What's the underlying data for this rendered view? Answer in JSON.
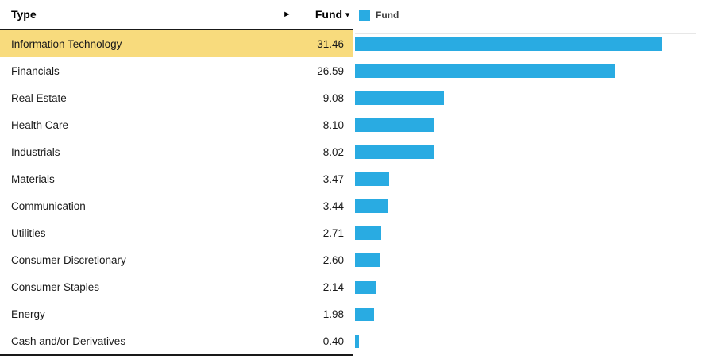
{
  "table": {
    "header": {
      "type_label": "Type",
      "expand_icon": "►",
      "fund_label": "Fund",
      "sort_desc_icon": "▼"
    },
    "rows": [
      {
        "type": "Information Technology",
        "fund": "31.46",
        "highlighted": true
      },
      {
        "type": "Financials",
        "fund": "26.59",
        "highlighted": false
      },
      {
        "type": "Real Estate",
        "fund": "9.08",
        "highlighted": false
      },
      {
        "type": "Health Care",
        "fund": "8.10",
        "highlighted": false
      },
      {
        "type": "Industrials",
        "fund": "8.02",
        "highlighted": false
      },
      {
        "type": "Materials",
        "fund": "3.47",
        "highlighted": false
      },
      {
        "type": "Communication",
        "fund": "3.44",
        "highlighted": false
      },
      {
        "type": "Utilities",
        "fund": "2.71",
        "highlighted": false
      },
      {
        "type": "Consumer Discretionary",
        "fund": "2.60",
        "highlighted": false
      },
      {
        "type": "Consumer Staples",
        "fund": "2.14",
        "highlighted": false
      },
      {
        "type": "Energy",
        "fund": "1.98",
        "highlighted": false
      },
      {
        "type": "Cash and/or Derivatives",
        "fund": "0.40",
        "highlighted": false
      }
    ]
  },
  "chart_data": {
    "type": "bar",
    "orientation": "horizontal",
    "title": "",
    "legend": [
      "Fund"
    ],
    "legend_label": "Fund",
    "legend_position": "top",
    "categories": [
      "Information Technology",
      "Financials",
      "Real Estate",
      "Health Care",
      "Industrials",
      "Materials",
      "Communication",
      "Utilities",
      "Consumer Discretionary",
      "Consumer Staples",
      "Energy",
      "Cash and/or Derivatives"
    ],
    "values": [
      31.46,
      26.59,
      9.08,
      8.1,
      8.02,
      3.47,
      3.44,
      2.71,
      2.6,
      2.14,
      1.98,
      0.4
    ],
    "xlim": [
      0,
      35
    ],
    "grid": false,
    "sort": "descending"
  },
  "colors": {
    "bar": "#29ABE2",
    "highlight_row": "#F8DB7D",
    "table_border": "#191919",
    "gridline": "#E7E7E7",
    "text": "#1A1A1A"
  }
}
